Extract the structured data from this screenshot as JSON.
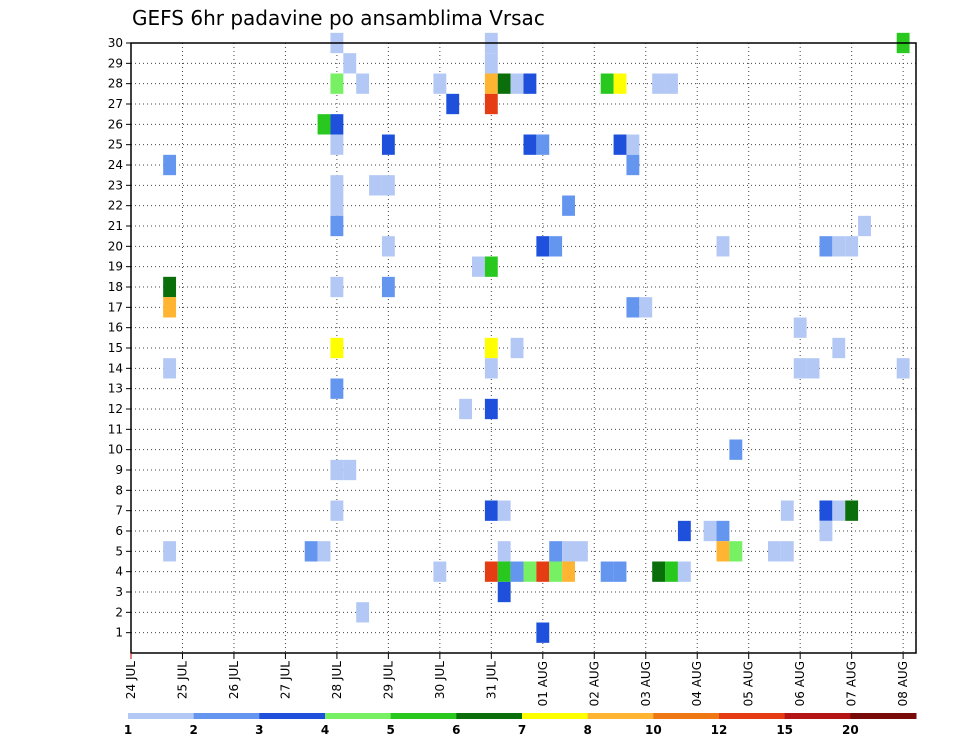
{
  "chart_data": {
    "type": "heatmap",
    "title": "GEFS 6hr padavine po ansamblima Vrsac",
    "xlabel": "",
    "ylabel": "",
    "x_ticks": [
      "24 JUL",
      "25 JUL",
      "26 JUL",
      "27 JUL",
      "28 JUL",
      "29 JUL",
      "30 JUL",
      "31 JUL",
      "01 AUG",
      "02 AUG",
      "03 AUG",
      "04 AUG",
      "05 AUG",
      "06 AUG",
      "07 AUG",
      "08 AUG"
    ],
    "x_range": [
      0,
      15.25
    ],
    "y_ticks": [
      "1",
      "2",
      "3",
      "4",
      "5",
      "6",
      "7",
      "8",
      "9",
      "10",
      "11",
      "12",
      "13",
      "14",
      "15",
      "16",
      "17",
      "18",
      "19",
      "20",
      "21",
      "22",
      "23",
      "24",
      "25",
      "26",
      "27",
      "28",
      "29",
      "30"
    ],
    "y_range": [
      0,
      30
    ],
    "grid": true,
    "legend": {
      "position": "bottom",
      "labels": [
        "1",
        "2",
        "3",
        "4",
        "5",
        "6",
        "7",
        "8",
        "10",
        "12",
        "15",
        "20"
      ],
      "colors": [
        "#b4c8f5",
        "#6496f0",
        "#1e50dc",
        "#78f064",
        "#28c81e",
        "#0a6e0a",
        "#ffff00",
        "#ffb432",
        "#f07814",
        "#e63c14",
        "#b41414",
        "#780a0a"
      ]
    },
    "cell_step_days": 0.25,
    "points": [
      {
        "x": 0.75,
        "y": 24,
        "v": 2
      },
      {
        "x": 0.75,
        "y": 18,
        "v": 6
      },
      {
        "x": 0.75,
        "y": 17,
        "v": 8
      },
      {
        "x": 0.75,
        "y": 14,
        "v": 1
      },
      {
        "x": 0.75,
        "y": 5,
        "v": 1
      },
      {
        "x": 3.5,
        "y": 5,
        "v": 2
      },
      {
        "x": 3.75,
        "y": 5,
        "v": 1
      },
      {
        "x": 3.75,
        "y": 26,
        "v": 5
      },
      {
        "x": 4,
        "y": 30,
        "v": 1
      },
      {
        "x": 4,
        "y": 28,
        "v": 4
      },
      {
        "x": 4,
        "y": 26,
        "v": 3
      },
      {
        "x": 4,
        "y": 25,
        "v": 1
      },
      {
        "x": 4,
        "y": 23,
        "v": 1
      },
      {
        "x": 4,
        "y": 22,
        "v": 1
      },
      {
        "x": 4,
        "y": 21,
        "v": 2
      },
      {
        "x": 4,
        "y": 18,
        "v": 1
      },
      {
        "x": 4,
        "y": 15,
        "v": 7
      },
      {
        "x": 4,
        "y": 13,
        "v": 2
      },
      {
        "x": 4,
        "y": 9,
        "v": 1
      },
      {
        "x": 4,
        "y": 7,
        "v": 1
      },
      {
        "x": 4.25,
        "y": 29,
        "v": 1
      },
      {
        "x": 4.25,
        "y": 9,
        "v": 1
      },
      {
        "x": 4.5,
        "y": 28,
        "v": 1
      },
      {
        "x": 4.5,
        "y": 2,
        "v": 1
      },
      {
        "x": 4.75,
        "y": 23,
        "v": 1
      },
      {
        "x": 5,
        "y": 23,
        "v": 1
      },
      {
        "x": 5,
        "y": 25,
        "v": 3
      },
      {
        "x": 5,
        "y": 20,
        "v": 1
      },
      {
        "x": 5,
        "y": 18,
        "v": 2
      },
      {
        "x": 6,
        "y": 28,
        "v": 1
      },
      {
        "x": 6,
        "y": 4,
        "v": 1
      },
      {
        "x": 6.25,
        "y": 27,
        "v": 3
      },
      {
        "x": 6.5,
        "y": 12,
        "v": 1
      },
      {
        "x": 6.75,
        "y": 19,
        "v": 1
      },
      {
        "x": 7,
        "y": 30,
        "v": 1
      },
      {
        "x": 7,
        "y": 29,
        "v": 1
      },
      {
        "x": 7,
        "y": 28,
        "v": 8
      },
      {
        "x": 7,
        "y": 27,
        "v": 10
      },
      {
        "x": 7,
        "y": 19,
        "v": 5
      },
      {
        "x": 7,
        "y": 15,
        "v": 7
      },
      {
        "x": 7,
        "y": 14,
        "v": 1
      },
      {
        "x": 7,
        "y": 12,
        "v": 3
      },
      {
        "x": 7,
        "y": 7,
        "v": 3
      },
      {
        "x": 7,
        "y": 4,
        "v": 10
      },
      {
        "x": 7.25,
        "y": 28,
        "v": 6
      },
      {
        "x": 7.25,
        "y": 7,
        "v": 1
      },
      {
        "x": 7.25,
        "y": 5,
        "v": 1
      },
      {
        "x": 7.25,
        "y": 4,
        "v": 5
      },
      {
        "x": 7.25,
        "y": 3,
        "v": 3
      },
      {
        "x": 7.5,
        "y": 28,
        "v": 1
      },
      {
        "x": 7.5,
        "y": 15,
        "v": 1
      },
      {
        "x": 7.5,
        "y": 4,
        "v": 2
      },
      {
        "x": 7.75,
        "y": 28,
        "v": 3
      },
      {
        "x": 7.75,
        "y": 25,
        "v": 3
      },
      {
        "x": 7.75,
        "y": 4,
        "v": 4
      },
      {
        "x": 8,
        "y": 25,
        "v": 2
      },
      {
        "x": 8,
        "y": 20,
        "v": 3
      },
      {
        "x": 8,
        "y": 4,
        "v": 10
      },
      {
        "x": 8,
        "y": 1,
        "v": 3
      },
      {
        "x": 8.25,
        "y": 20,
        "v": 2
      },
      {
        "x": 8.25,
        "y": 5,
        "v": 2
      },
      {
        "x": 8.25,
        "y": 4,
        "v": 4
      },
      {
        "x": 8.5,
        "y": 22,
        "v": 2
      },
      {
        "x": 8.5,
        "y": 5,
        "v": 1
      },
      {
        "x": 8.5,
        "y": 4,
        "v": 8
      },
      {
        "x": 8.75,
        "y": 5,
        "v": 1
      },
      {
        "x": 9.25,
        "y": 28,
        "v": 5
      },
      {
        "x": 9.25,
        "y": 4,
        "v": 2
      },
      {
        "x": 9.5,
        "y": 28,
        "v": 7
      },
      {
        "x": 9.5,
        "y": 25,
        "v": 3
      },
      {
        "x": 9.5,
        "y": 4,
        "v": 2
      },
      {
        "x": 9.75,
        "y": 25,
        "v": 1
      },
      {
        "x": 9.75,
        "y": 24,
        "v": 2
      },
      {
        "x": 9.75,
        "y": 17,
        "v": 2
      },
      {
        "x": 10,
        "y": 17,
        "v": 1
      },
      {
        "x": 10.25,
        "y": 28,
        "v": 1
      },
      {
        "x": 10.25,
        "y": 4,
        "v": 6
      },
      {
        "x": 10.5,
        "y": 28,
        "v": 1
      },
      {
        "x": 10.5,
        "y": 4,
        "v": 5
      },
      {
        "x": 10.75,
        "y": 6,
        "v": 3
      },
      {
        "x": 10.75,
        "y": 4,
        "v": 1
      },
      {
        "x": 11.25,
        "y": 6,
        "v": 1
      },
      {
        "x": 11.5,
        "y": 20,
        "v": 1
      },
      {
        "x": 11.5,
        "y": 6,
        "v": 2
      },
      {
        "x": 11.5,
        "y": 5,
        "v": 8
      },
      {
        "x": 11.75,
        "y": 10,
        "v": 2
      },
      {
        "x": 11.75,
        "y": 5,
        "v": 4
      },
      {
        "x": 12.5,
        "y": 5,
        "v": 1
      },
      {
        "x": 12.75,
        "y": 7,
        "v": 1
      },
      {
        "x": 12.75,
        "y": 5,
        "v": 1
      },
      {
        "x": 13,
        "y": 16,
        "v": 1
      },
      {
        "x": 13,
        "y": 14,
        "v": 1
      },
      {
        "x": 13.25,
        "y": 14,
        "v": 1
      },
      {
        "x": 13.5,
        "y": 20,
        "v": 2
      },
      {
        "x": 13.5,
        "y": 7,
        "v": 3
      },
      {
        "x": 13.5,
        "y": 6,
        "v": 1
      },
      {
        "x": 13.75,
        "y": 20,
        "v": 1
      },
      {
        "x": 13.75,
        "y": 15,
        "v": 1
      },
      {
        "x": 13.75,
        "y": 7,
        "v": 1
      },
      {
        "x": 14,
        "y": 20,
        "v": 1
      },
      {
        "x": 14,
        "y": 7,
        "v": 6
      },
      {
        "x": 14.25,
        "y": 21,
        "v": 1
      },
      {
        "x": 15,
        "y": 30,
        "v": 5
      },
      {
        "x": 15,
        "y": 14,
        "v": 1
      }
    ]
  }
}
